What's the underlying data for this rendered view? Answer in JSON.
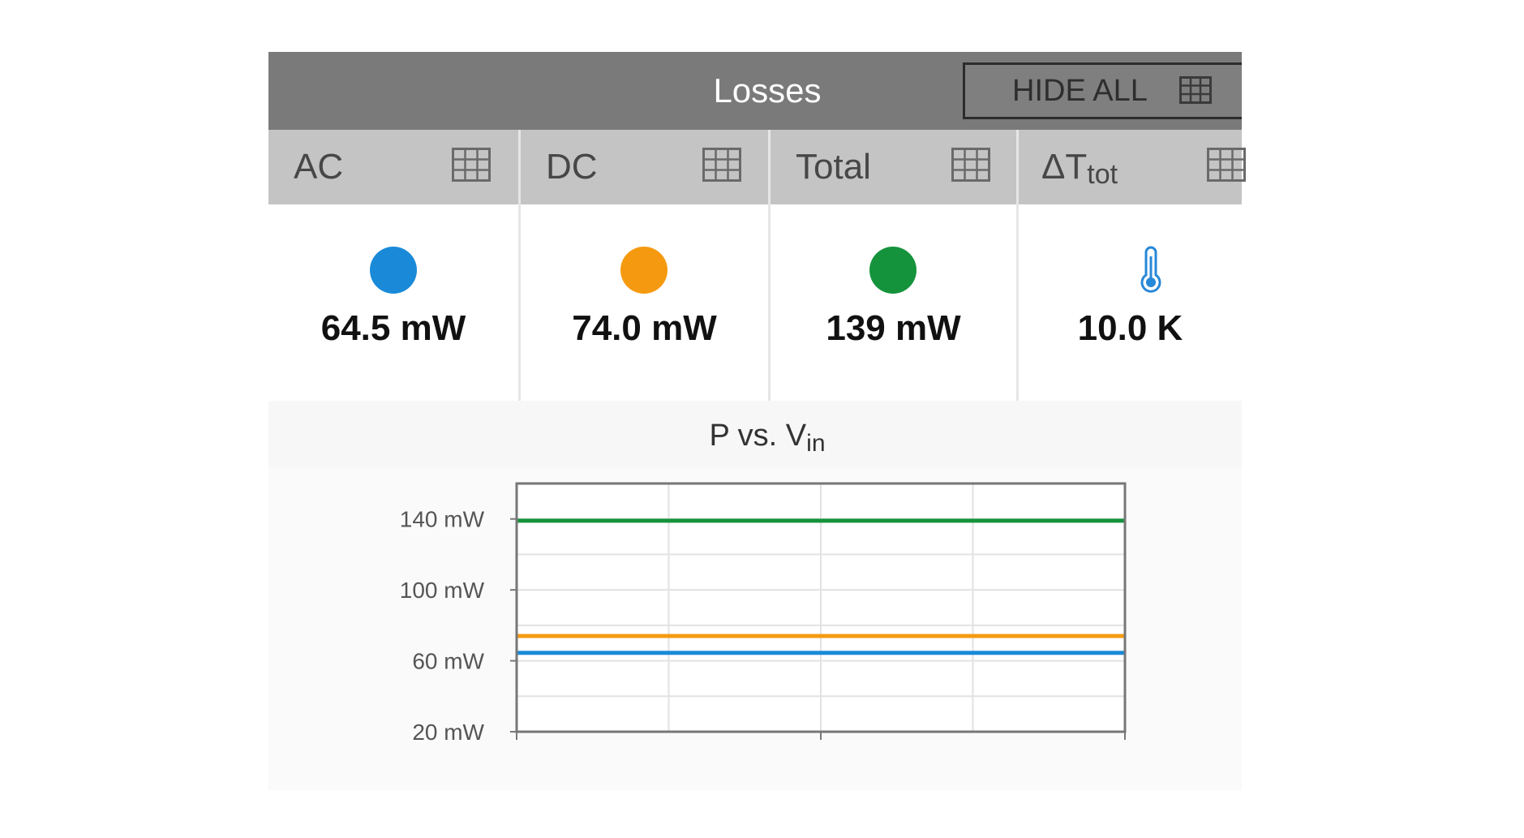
{
  "header": {
    "title": "Losses",
    "hide_all_label": "HIDE ALL",
    "hide_all_icon": "grid-icon"
  },
  "tabs": [
    {
      "label": "AC",
      "icon": "grid-icon"
    },
    {
      "label": "DC",
      "icon": "grid-icon"
    },
    {
      "label": "Total",
      "icon": "grid-icon"
    },
    {
      "label": "ΔT",
      "label_sub": "tot",
      "icon": "grid-icon"
    }
  ],
  "values": [
    {
      "value": "64.5 mW",
      "icon": "blue-dot-icon",
      "color": "#1a8ad8"
    },
    {
      "value": "74.0 mW",
      "icon": "orange-dot-icon",
      "color": "#f59a10"
    },
    {
      "value": "139 mW",
      "icon": "green-dot-icon",
      "color": "#15933c"
    },
    {
      "value": "10.0 K",
      "icon": "thermometer-icon",
      "color": "#2688d8"
    }
  ],
  "chart_data": {
    "type": "line",
    "title": "P vs. V",
    "title_sub": "in",
    "xlabel": "",
    "ylabel": "",
    "yticks": [
      "140 mW",
      "100 mW",
      "60 mW",
      "20 mW"
    ],
    "ytick_values": [
      140,
      100,
      60,
      20
    ],
    "xticks": [],
    "xlim": [
      0,
      1
    ],
    "ylim": [
      20,
      160
    ],
    "grid": true,
    "series": [
      {
        "x": [
          0,
          1
        ],
        "values": [
          139,
          139
        ],
        "color": "#15933c"
      },
      {
        "x": [
          0,
          1
        ],
        "values": [
          74,
          74
        ],
        "color": "#f59a10"
      },
      {
        "x": [
          0,
          1
        ],
        "values": [
          64.5,
          64.5
        ],
        "color": "#1a8ad8"
      }
    ]
  }
}
